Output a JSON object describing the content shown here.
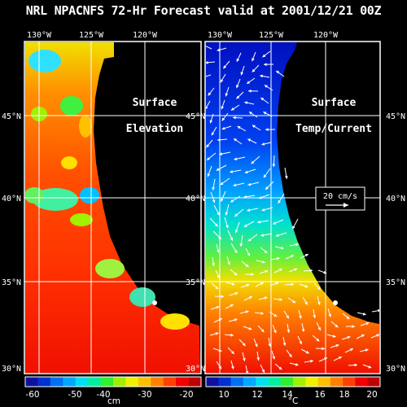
{
  "title": "NRL NPACNFS 72-Hr Forecast valid at 2001/12/21 00Z",
  "longitude_labels": [
    "130°W",
    "125°W",
    "120°W"
  ],
  "latitude_labels": [
    "45°N",
    "40°N",
    "35°N",
    "30°N"
  ],
  "left_panel": {
    "label_line1": "Surface",
    "label_line2": "Elevation",
    "colorbar": {
      "ticks": [
        "-60",
        "-50",
        "-40",
        "-30",
        "-20"
      ],
      "unit": "cm",
      "colors": [
        "#1010a0",
        "#0030d0",
        "#0070f0",
        "#00a8ff",
        "#00e0f0",
        "#00f0a0",
        "#30f030",
        "#a0f000",
        "#f0f000",
        "#ffc000",
        "#ff8000",
        "#ff4000",
        "#f00000",
        "#c00000"
      ]
    }
  },
  "right_panel": {
    "label_line1": "Surface",
    "label_line2": "Temp/Current",
    "vector_legend": "20 cm/s",
    "colorbar": {
      "ticks": [
        "10",
        "12",
        "14",
        "16",
        "18",
        "20"
      ],
      "unit": "°C",
      "colors": [
        "#1010a0",
        "#0030d0",
        "#0070f0",
        "#00a8ff",
        "#00e0f0",
        "#00f0a0",
        "#30f030",
        "#a0f000",
        "#f0f000",
        "#ffc000",
        "#ff8000",
        "#ff4000",
        "#f00000",
        "#c00000"
      ]
    }
  }
}
